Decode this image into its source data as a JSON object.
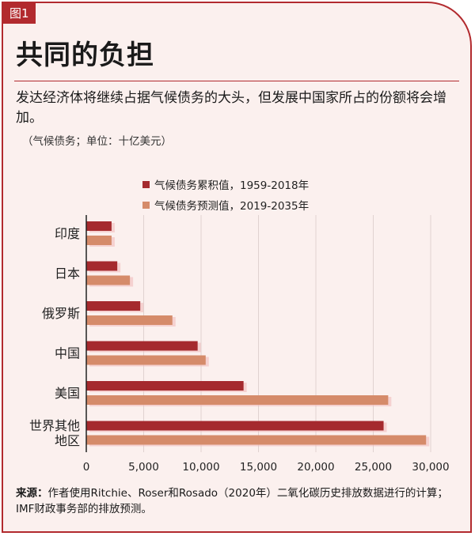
{
  "figure_tag": "图1",
  "header": {
    "title": "共同的负担",
    "subtitle": "发达经济体将继续占据气候债务的大头，但发展中国家所占的份额将会增加。",
    "units": "（气候债务；单位：十亿美元）"
  },
  "source": {
    "label": "来源：",
    "text": "作者使用Ritchie、Roser和Rosado（2020年）二氧化碳历史排放数据进行的计算；IMF财政事务部的排放预测。"
  },
  "colors": {
    "accent": "#b22a2e",
    "series_cumulative": "#a52a2e",
    "series_projected": "#d58b6a",
    "background": "#fbf0ee",
    "grid": "#e0d2d0"
  },
  "chart_data": {
    "type": "bar",
    "orientation": "horizontal",
    "categories": [
      "印度",
      "日本",
      "俄罗斯",
      "中国",
      "美国",
      "世界其他地区"
    ],
    "category_lines": [
      [
        "印度"
      ],
      [
        "日本"
      ],
      [
        "俄罗斯"
      ],
      [
        "中国"
      ],
      [
        "美国"
      ],
      [
        "世界其他",
        "地区"
      ]
    ],
    "series": [
      {
        "name": "气候债务累积值，1959-2018年",
        "values": [
          2200,
          2700,
          4700,
          9700,
          13700,
          25900
        ]
      },
      {
        "name": "气候债务预测值，2019-2035年",
        "values": [
          2200,
          3800,
          7500,
          10400,
          26300,
          29600
        ]
      }
    ],
    "xlim": [
      0,
      30000
    ],
    "xticks": [
      0,
      5000,
      10000,
      15000,
      20000,
      25000,
      30000
    ],
    "xtick_labels": [
      "0",
      "5,000",
      "10,000",
      "15,000",
      "20,000",
      "25,000",
      "30,000"
    ],
    "grid": true,
    "legend_position": "top"
  }
}
